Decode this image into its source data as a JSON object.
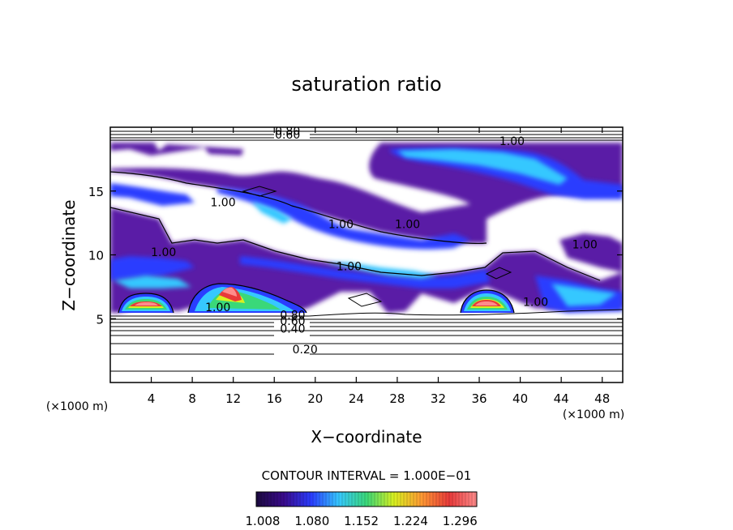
{
  "chart_data": {
    "type": "heatmap",
    "title": "saturation ratio",
    "xlabel": "X−coordinate",
    "ylabel": "Z−coordinate",
    "x_unit_left": "(×1000 m)",
    "x_unit_right": "(×1000 m)",
    "xlim": [
      0,
      50
    ],
    "ylim": [
      0,
      20
    ],
    "x_ticks": [
      4,
      8,
      12,
      16,
      20,
      24,
      28,
      32,
      36,
      40,
      44,
      48
    ],
    "x_tick_labels": [
      "4",
      "8",
      "12",
      "16",
      "20",
      "24",
      "28",
      "32",
      "36",
      "40",
      "44",
      "48"
    ],
    "y_ticks": [
      5,
      10,
      15
    ],
    "y_tick_labels": [
      "5",
      "10",
      "15"
    ],
    "contour_interval_text": "CONTOUR INTERVAL = 1.000E−01",
    "colorbar": {
      "range": [
        1.008,
        1.33
      ],
      "ticks": [
        1.008,
        1.08,
        1.152,
        1.224,
        1.296
      ],
      "tick_labels": [
        "1.008",
        "1.080",
        "1.152",
        "1.224",
        "1.296"
      ],
      "colors": [
        "#1c0a40",
        "#3a0a8c",
        "#2a3dff",
        "#36c8ff",
        "#3ad879",
        "#d9f020",
        "#ff9933",
        "#e83a3a",
        "#ff8c8c"
      ]
    },
    "contour_labels": [
      {
        "text": "0.20",
        "x": 19,
        "z": 2.3
      },
      {
        "text": "0.40",
        "x": 17.8,
        "z": 3.9
      },
      {
        "text": "0.60",
        "x": 17.8,
        "z": 4.5
      },
      {
        "text": "0.80",
        "x": 17.8,
        "z": 5.0
      },
      {
        "text": "0.60",
        "x": 17.3,
        "z": 19.1
      },
      {
        "text": "0.80",
        "x": 17.3,
        "z": 19.4
      },
      {
        "text": "1.00",
        "x": 10.5,
        "z": 5.6
      },
      {
        "text": "1.00",
        "x": 5.2,
        "z": 9.9
      },
      {
        "text": "1.00",
        "x": 11,
        "z": 13.8
      },
      {
        "text": "1.00",
        "x": 22.5,
        "z": 12.1
      },
      {
        "text": "1.00",
        "x": 23.3,
        "z": 8.8
      },
      {
        "text": "1.00",
        "x": 29,
        "z": 12.1
      },
      {
        "text": "1.00",
        "x": 39.2,
        "z": 18.6
      },
      {
        "text": "1.00",
        "x": 46.3,
        "z": 10.5
      },
      {
        "text": "1.00",
        "x": 41.5,
        "z": 6.0
      }
    ]
  }
}
